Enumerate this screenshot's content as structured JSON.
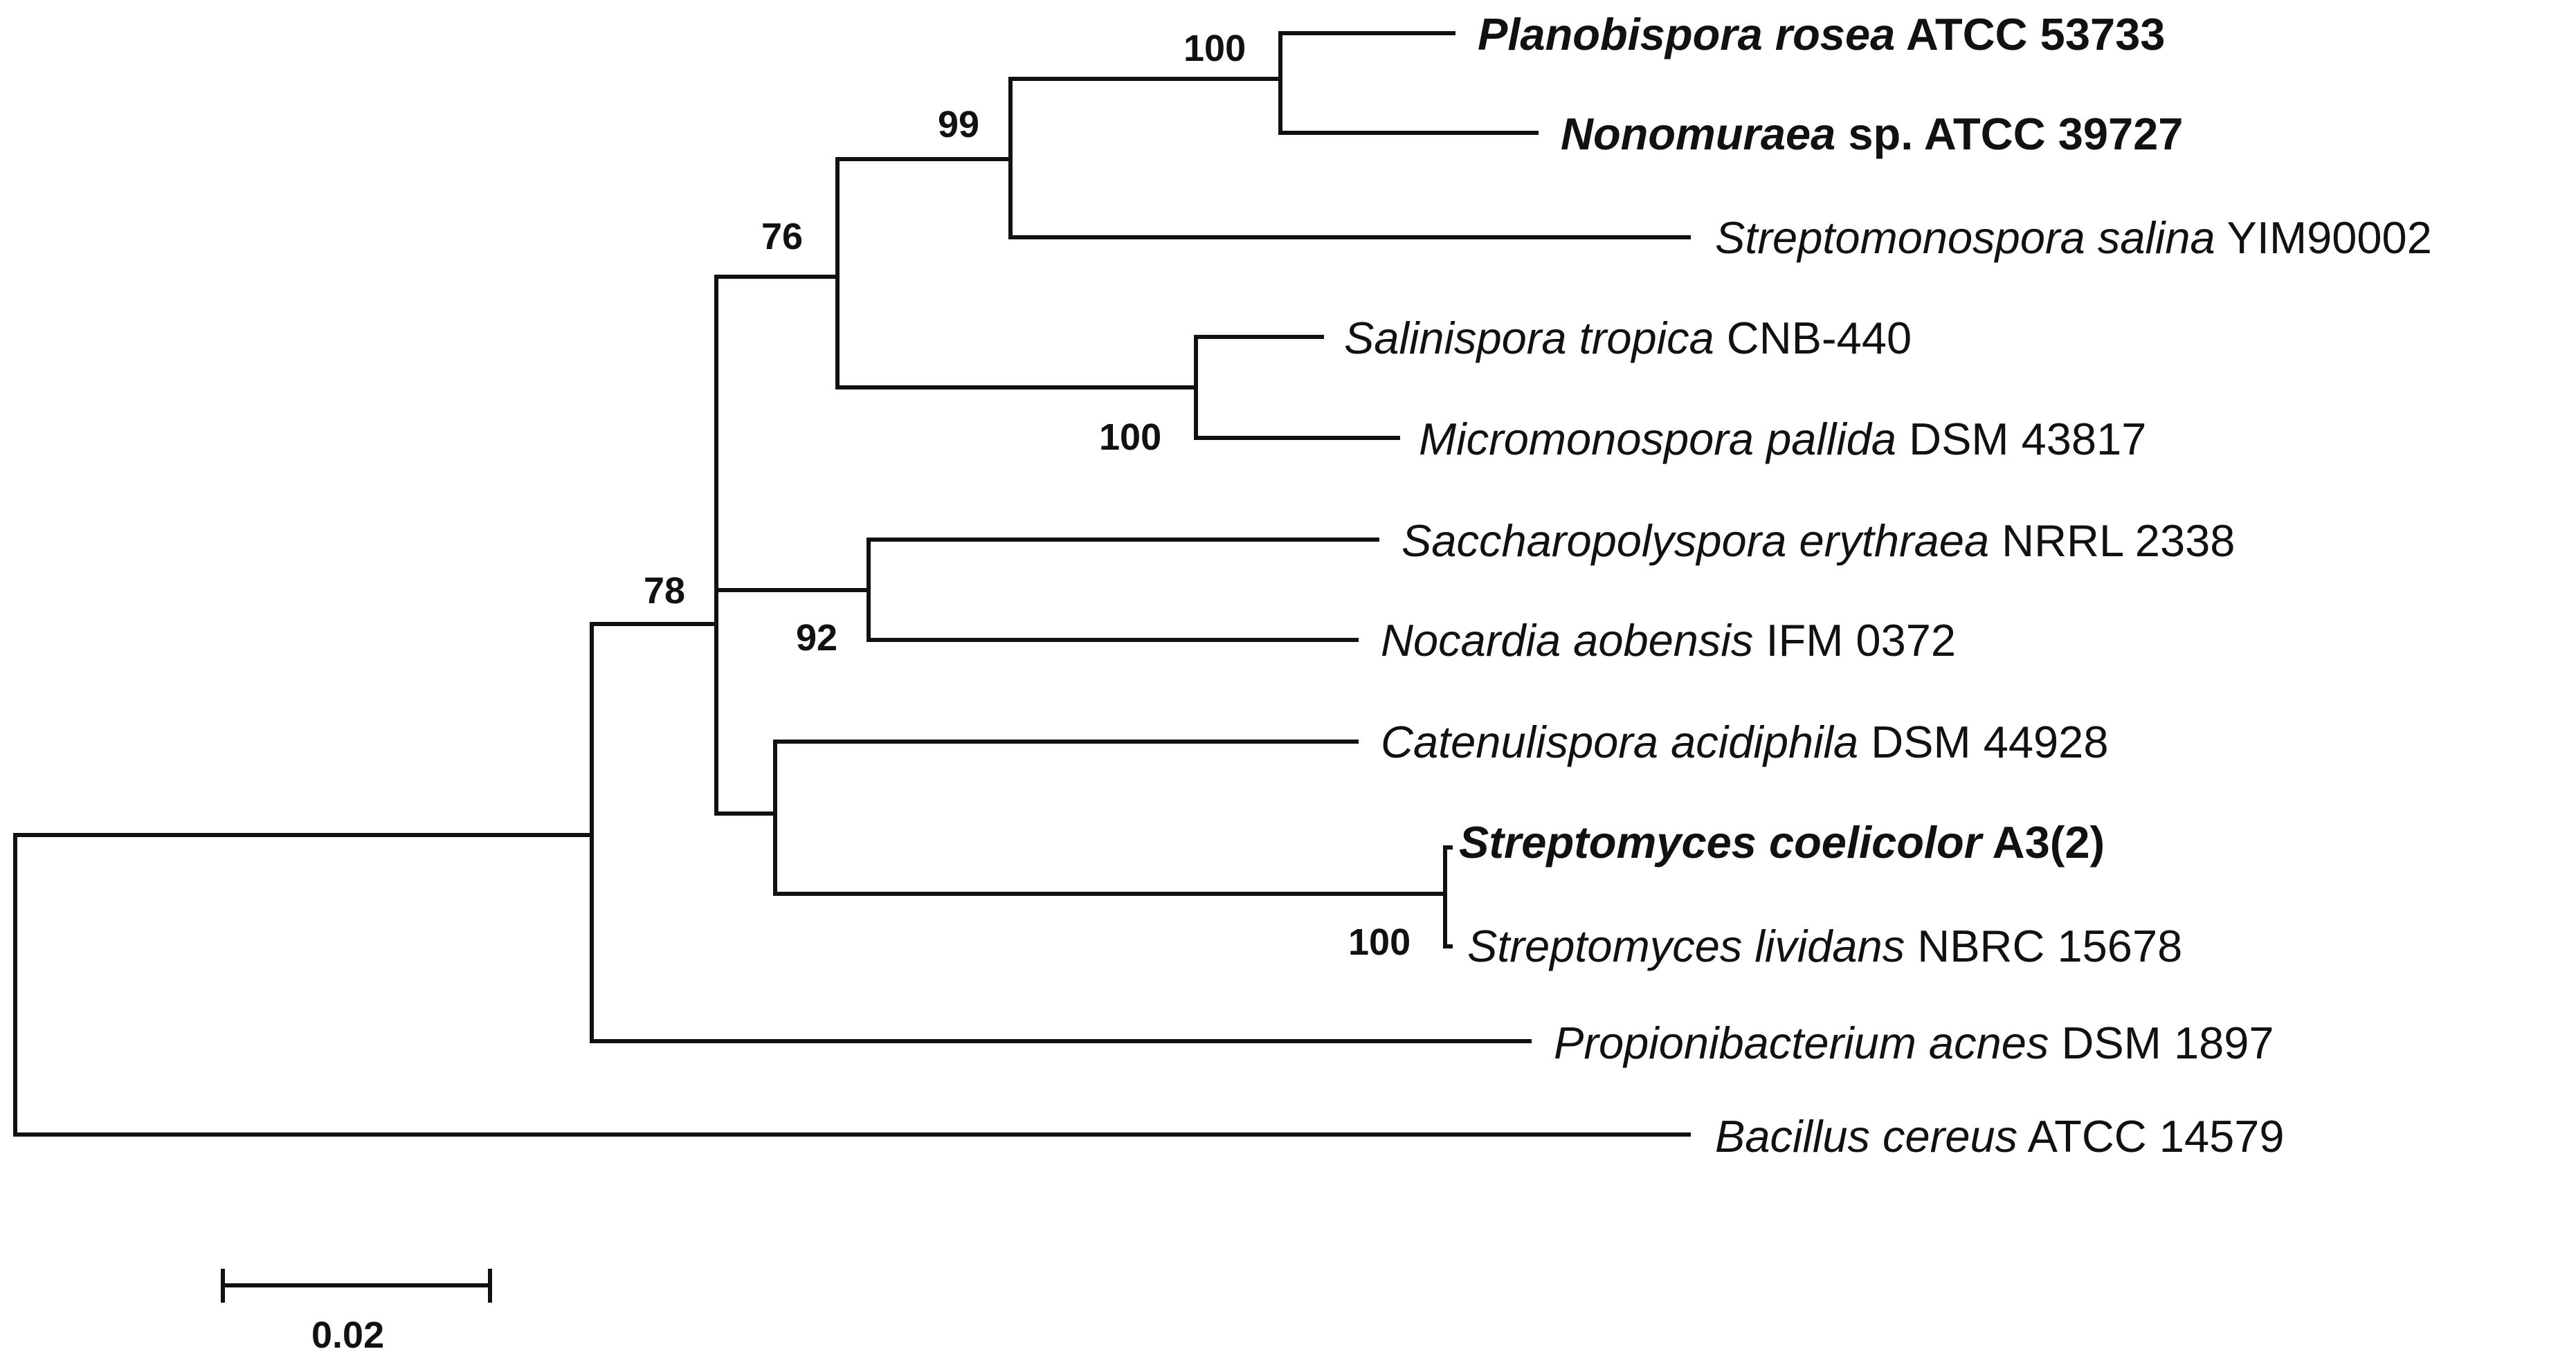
{
  "taxa": [
    {
      "id": "planobispora",
      "genus": "Planobispora rosea",
      "strain": "ATCC 53733",
      "bold": true
    },
    {
      "id": "nonomuraea",
      "genus": "Nonomuraea",
      "strain": "sp. ATCC 39727",
      "bold": true
    },
    {
      "id": "streptomonospora",
      "genus": "Streptomonospora salina",
      "strain": "YIM90002",
      "bold": false
    },
    {
      "id": "salinispora",
      "genus": "Salinispora tropica",
      "strain": "CNB-440",
      "bold": false
    },
    {
      "id": "micromonospora",
      "genus": "Micromonospora pallida",
      "strain": "DSM 43817",
      "bold": false
    },
    {
      "id": "saccharopolyspora",
      "genus": "Saccharopolyspora erythraea",
      "strain": "NRRL 2338",
      "bold": false
    },
    {
      "id": "nocardia",
      "genus": "Nocardia aobensis",
      "strain": "IFM 0372",
      "bold": false
    },
    {
      "id": "catenulispora",
      "genus": "Catenulispora acidiphila",
      "strain": "DSM 44928",
      "bold": false
    },
    {
      "id": "streptomyces-coelicolor",
      "genus": "Streptomyces coelicolor",
      "strain": "A3(2)",
      "bold": true
    },
    {
      "id": "streptomyces-lividans",
      "genus": "Streptomyces lividans",
      "strain": "NBRC 15678",
      "bold": false
    },
    {
      "id": "propionibacterium",
      "genus": "Propionibacterium acnes",
      "strain": "DSM 1897",
      "bold": false
    },
    {
      "id": "bacillus",
      "genus": "Bacillus cereus",
      "strain": "ATCC 14579",
      "bold": false
    }
  ],
  "bootstrap": {
    "planobispora_nonomuraea": "100",
    "streptomonospora_clade": "99",
    "upper_clade": "76",
    "salinispora_micromonospora": "100",
    "saccharopolyspora_nocardia": "92",
    "actinobacteria": "78",
    "streptomyces": "100"
  },
  "scale_bar": {
    "label": "0.02",
    "value": 0.02
  }
}
